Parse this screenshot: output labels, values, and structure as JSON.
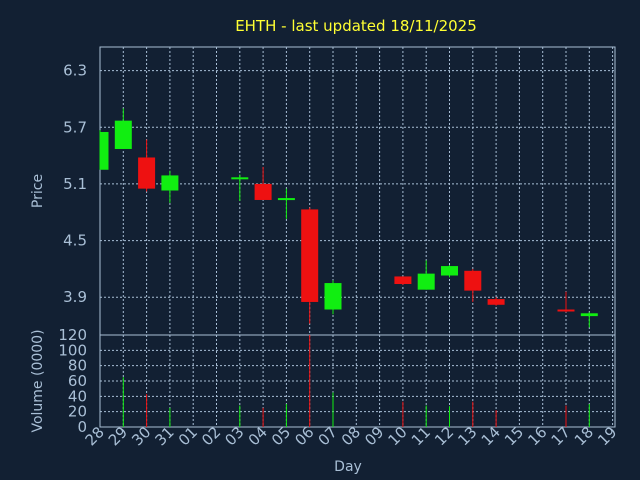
{
  "chart_data": {
    "type": "candlestick",
    "title": "EHTH - last updated 18/11/2025",
    "xlabel": "Day",
    "colors": {
      "up": "#11ee11",
      "down": "#ee1111",
      "background": "#122033",
      "grid": "#a9bfd6",
      "title": "#ffff33",
      "text": "#a9bfd6"
    },
    "x_ticks": [
      "28",
      "29",
      "30",
      "31",
      "01",
      "02",
      "03",
      "04",
      "05",
      "06",
      "07",
      "08",
      "09",
      "10",
      "11",
      "12",
      "13",
      "14",
      "15",
      "16",
      "17",
      "18",
      "19"
    ],
    "price_panel": {
      "ylabel": "Price",
      "yticks": [
        "6.3",
        "5.7",
        "5.1",
        "4.5",
        "3.9"
      ],
      "ylim": [
        3.5,
        6.55
      ]
    },
    "volume_panel": {
      "ylabel": "Volume (0000)",
      "yticks": [
        "120",
        "100",
        "80",
        "60",
        "40",
        "20",
        "0"
      ],
      "ylim": [
        0,
        120
      ]
    },
    "candles": [
      {
        "day": "28",
        "open": 5.25,
        "high": 5.67,
        "low": 5.25,
        "close": 5.65,
        "volume": 0
      },
      {
        "day": "29",
        "open": 5.47,
        "high": 5.9,
        "low": 5.47,
        "close": 5.77,
        "volume": 65
      },
      {
        "day": "30",
        "open": 5.38,
        "high": 5.57,
        "low": 5.02,
        "close": 5.05,
        "volume": 43
      },
      {
        "day": "31",
        "open": 5.03,
        "high": 5.24,
        "low": 4.9,
        "close": 5.19,
        "volume": 25
      },
      {
        "day": "03",
        "open": 5.15,
        "high": 5.2,
        "low": 4.92,
        "close": 5.17,
        "volume": 28
      },
      {
        "day": "04",
        "open": 5.1,
        "high": 5.28,
        "low": 4.93,
        "close": 4.93,
        "volume": 25
      },
      {
        "day": "05",
        "open": 4.93,
        "high": 5.05,
        "low": 4.73,
        "close": 4.95,
        "volume": 30
      },
      {
        "day": "06",
        "open": 4.83,
        "high": 4.85,
        "low": 3.62,
        "close": 3.85,
        "volume": 120
      },
      {
        "day": "07",
        "open": 3.77,
        "high": 4.08,
        "low": 3.72,
        "close": 4.05,
        "volume": 45
      },
      {
        "day": "10",
        "open": 4.12,
        "high": 4.12,
        "low": 4.03,
        "close": 4.04,
        "volume": 33
      },
      {
        "day": "11",
        "open": 3.98,
        "high": 4.29,
        "low": 3.98,
        "close": 4.15,
        "volume": 28
      },
      {
        "day": "12",
        "open": 4.13,
        "high": 4.24,
        "low": 4.11,
        "close": 4.23,
        "volume": 27
      },
      {
        "day": "13",
        "open": 4.18,
        "high": 4.2,
        "low": 3.85,
        "close": 3.97,
        "volume": 33
      },
      {
        "day": "14",
        "open": 3.88,
        "high": 3.9,
        "low": 3.81,
        "close": 3.82,
        "volume": 22
      },
      {
        "day": "17",
        "open": 3.77,
        "high": 3.96,
        "low": 3.74,
        "close": 3.75,
        "volume": 28
      },
      {
        "day": "18",
        "open": 3.7,
        "high": 3.74,
        "low": 3.58,
        "close": 3.73,
        "volume": 30
      }
    ]
  }
}
